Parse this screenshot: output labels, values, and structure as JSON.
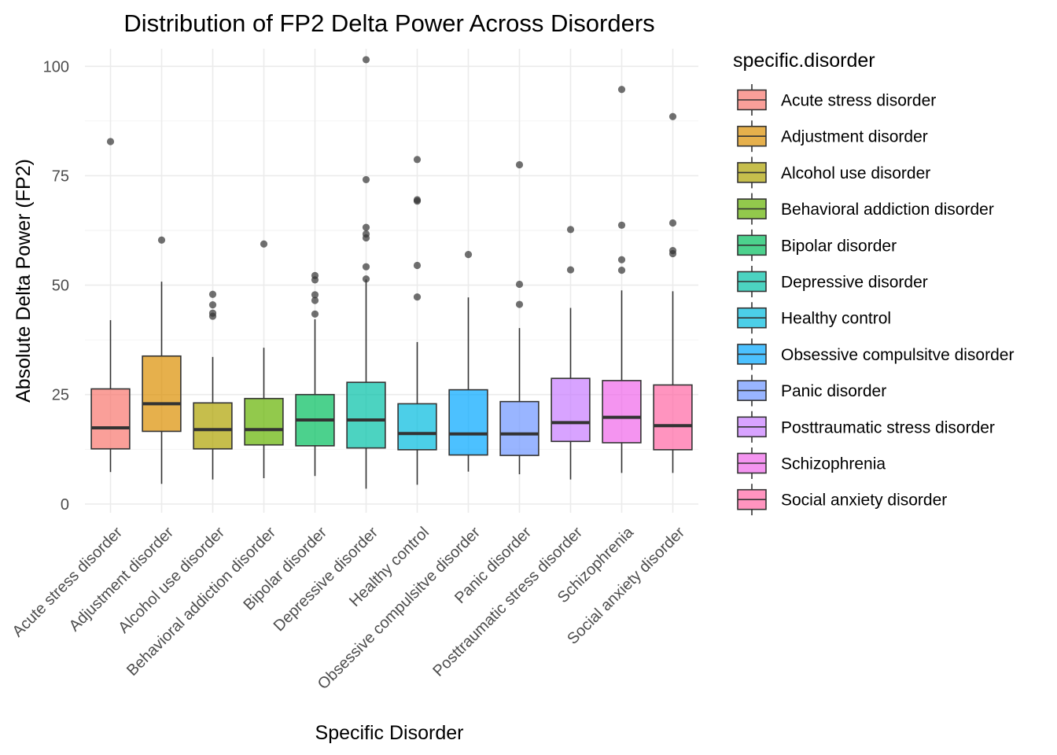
{
  "chart_data": {
    "type": "boxplot",
    "title": "Distribution of FP2 Delta Power Across Disorders",
    "xlabel": "Specific Disorder",
    "ylabel": "Absolute Delta Power (FP2)",
    "ylim": [
      -2,
      104
    ],
    "yticks": [
      0,
      25,
      50,
      75,
      100
    ],
    "grid": true,
    "legend": {
      "title": "specific.disorder",
      "position": "right"
    },
    "box_alpha": 0.7,
    "groups": [
      {
        "name": "Acute stress disorder",
        "color": "#F8766D",
        "whisker_low": 7.3,
        "q1": 12.6,
        "median": 17.4,
        "q3": 26.3,
        "whisker_high": 42.0,
        "outliers": [
          82.8
        ]
      },
      {
        "name": "Adjustment disorder",
        "color": "#DB8E00",
        "whisker_low": 4.6,
        "q1": 16.6,
        "median": 22.9,
        "q3": 33.8,
        "whisker_high": 50.8,
        "outliers": [
          60.3
        ]
      },
      {
        "name": "Alcohol use disorder",
        "color": "#AEA200",
        "whisker_low": 5.6,
        "q1": 12.6,
        "median": 17.0,
        "q3": 23.1,
        "whisker_high": 33.6,
        "outliers": [
          42.9,
          43.6,
          45.5,
          47.9
        ]
      },
      {
        "name": "Behavioral addiction disorder",
        "color": "#64B200",
        "whisker_low": 5.9,
        "q1": 13.5,
        "median": 17.0,
        "q3": 24.1,
        "whisker_high": 35.7,
        "outliers": [
          59.4
        ]
      },
      {
        "name": "Bipolar disorder",
        "color": "#00BD5C",
        "whisker_low": 6.4,
        "q1": 13.3,
        "median": 19.2,
        "q3": 25.0,
        "whisker_high": 42.2,
        "outliers": [
          43.4,
          46.5,
          47.8,
          51.2,
          52.2
        ]
      },
      {
        "name": "Depressive disorder",
        "color": "#00C1A7",
        "whisker_low": 3.5,
        "q1": 12.8,
        "median": 19.2,
        "q3": 27.8,
        "whisker_high": 51.3,
        "outliers": [
          51.4,
          54.2,
          60.8,
          61.7,
          63.2,
          74.1,
          101.5
        ]
      },
      {
        "name": "Healthy control",
        "color": "#00BADE",
        "whisker_low": 4.4,
        "q1": 12.4,
        "median": 16.1,
        "q3": 22.9,
        "whisker_high": 37.0,
        "outliers": [
          47.3,
          54.5,
          69.2,
          69.5,
          78.7
        ]
      },
      {
        "name": "Obsessive compulsitve disorder",
        "color": "#00A6FF",
        "whisker_low": 7.4,
        "q1": 11.2,
        "median": 16.0,
        "q3": 26.1,
        "whisker_high": 47.2,
        "outliers": [
          57.0
        ]
      },
      {
        "name": "Panic disorder",
        "color": "#6E96FF",
        "whisker_low": 6.8,
        "q1": 11.1,
        "median": 16.0,
        "q3": 23.4,
        "whisker_high": 40.2,
        "outliers": [
          45.6,
          50.2,
          77.5
        ]
      },
      {
        "name": "Posttraumatic stress disorder",
        "color": "#C77CFF",
        "whisker_low": 5.6,
        "q1": 14.3,
        "median": 18.6,
        "q3": 28.7,
        "whisker_high": 44.8,
        "outliers": [
          53.5,
          62.7
        ]
      },
      {
        "name": "Schizophrenia",
        "color": "#F066EA",
        "whisker_low": 7.1,
        "q1": 14.0,
        "median": 19.8,
        "q3": 28.2,
        "whisker_high": 48.8,
        "outliers": [
          53.4,
          55.8,
          63.7,
          94.7
        ]
      },
      {
        "name": "Social anxiety disorder",
        "color": "#FF67A4",
        "whisker_low": 7.1,
        "q1": 12.4,
        "median": 17.9,
        "q3": 27.2,
        "whisker_high": 48.6,
        "outliers": [
          57.2,
          57.9,
          64.2,
          88.5
        ]
      }
    ]
  }
}
